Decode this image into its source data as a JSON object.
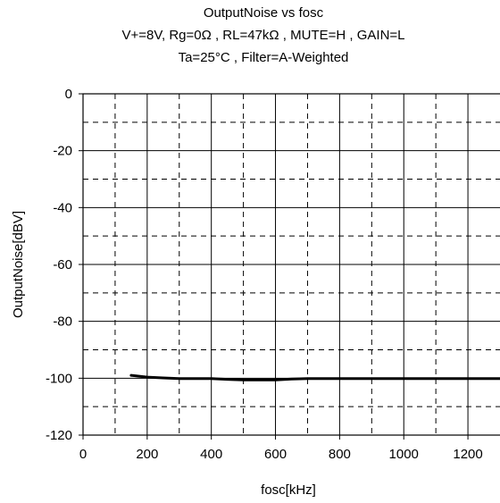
{
  "chart_data": {
    "type": "line",
    "title_lines": [
      "OutputNoise vs fosc",
      "V+=8V, Rg=0Ω , RL=47kΩ , MUTE=H , GAIN=L",
      "Ta=25°C , Filter=A-Weighted"
    ],
    "xlabel": "fosc[kHz]",
    "ylabel": "OutputNoise[dBV]",
    "xlim": [
      0,
      1300
    ],
    "ylim": [
      -120,
      0
    ],
    "x_ticks": [
      0,
      200,
      400,
      600,
      800,
      1000,
      1200
    ],
    "y_ticks": [
      0,
      -20,
      -40,
      -60,
      -80,
      -100,
      -120
    ],
    "minor_x_grid": [
      100,
      300,
      500,
      700,
      900,
      1100
    ],
    "minor_y_grid": [
      -10,
      -30,
      -50,
      -70,
      -90,
      -110
    ],
    "grid": true,
    "series": [
      {
        "x": [
          150,
          200,
          250,
          300,
          350,
          400,
          450,
          500,
          550,
          600,
          650,
          700,
          750,
          800,
          900,
          1000,
          1100,
          1200,
          1300
        ],
        "y": [
          -99.0,
          -99.6,
          -99.9,
          -100.1,
          -100.1,
          -100.1,
          -100.4,
          -100.6,
          -100.6,
          -100.6,
          -100.3,
          -100.1,
          -100.1,
          -100.1,
          -100.1,
          -100.1,
          -100.1,
          -100.1,
          -100.1
        ]
      }
    ]
  }
}
